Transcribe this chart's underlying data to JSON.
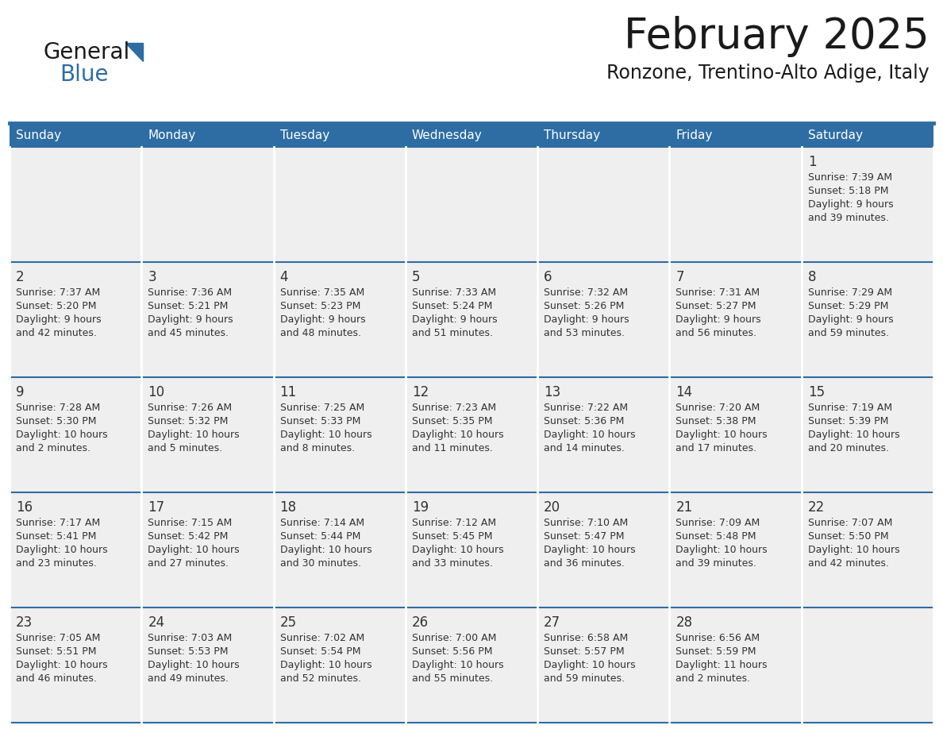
{
  "title": "February 2025",
  "subtitle": "Ronzone, Trentino-Alto Adige, Italy",
  "header_bg": "#2E6DA4",
  "header_text": "#FFFFFF",
  "cell_bg_light": "#EFEFEF",
  "border_color": "#2E6DA4",
  "title_color": "#1a1a1a",
  "subtitle_color": "#1a1a1a",
  "day_number_color": "#333333",
  "cell_text_color": "#333333",
  "day_names": [
    "Sunday",
    "Monday",
    "Tuesday",
    "Wednesday",
    "Thursday",
    "Friday",
    "Saturday"
  ],
  "logo_general_color": "#1a1a1a",
  "logo_blue_color": "#2E6DA4",
  "days": [
    {
      "date": 1,
      "col": 6,
      "row": 0,
      "sunrise": "7:39 AM",
      "sunset": "5:18 PM",
      "daylight": "9 hours and 39 minutes"
    },
    {
      "date": 2,
      "col": 0,
      "row": 1,
      "sunrise": "7:37 AM",
      "sunset": "5:20 PM",
      "daylight": "9 hours and 42 minutes"
    },
    {
      "date": 3,
      "col": 1,
      "row": 1,
      "sunrise": "7:36 AM",
      "sunset": "5:21 PM",
      "daylight": "9 hours and 45 minutes"
    },
    {
      "date": 4,
      "col": 2,
      "row": 1,
      "sunrise": "7:35 AM",
      "sunset": "5:23 PM",
      "daylight": "9 hours and 48 minutes"
    },
    {
      "date": 5,
      "col": 3,
      "row": 1,
      "sunrise": "7:33 AM",
      "sunset": "5:24 PM",
      "daylight": "9 hours and 51 minutes"
    },
    {
      "date": 6,
      "col": 4,
      "row": 1,
      "sunrise": "7:32 AM",
      "sunset": "5:26 PM",
      "daylight": "9 hours and 53 minutes"
    },
    {
      "date": 7,
      "col": 5,
      "row": 1,
      "sunrise": "7:31 AM",
      "sunset": "5:27 PM",
      "daylight": "9 hours and 56 minutes"
    },
    {
      "date": 8,
      "col": 6,
      "row": 1,
      "sunrise": "7:29 AM",
      "sunset": "5:29 PM",
      "daylight": "9 hours and 59 minutes"
    },
    {
      "date": 9,
      "col": 0,
      "row": 2,
      "sunrise": "7:28 AM",
      "sunset": "5:30 PM",
      "daylight": "10 hours and 2 minutes"
    },
    {
      "date": 10,
      "col": 1,
      "row": 2,
      "sunrise": "7:26 AM",
      "sunset": "5:32 PM",
      "daylight": "10 hours and 5 minutes"
    },
    {
      "date": 11,
      "col": 2,
      "row": 2,
      "sunrise": "7:25 AM",
      "sunset": "5:33 PM",
      "daylight": "10 hours and 8 minutes"
    },
    {
      "date": 12,
      "col": 3,
      "row": 2,
      "sunrise": "7:23 AM",
      "sunset": "5:35 PM",
      "daylight": "10 hours and 11 minutes"
    },
    {
      "date": 13,
      "col": 4,
      "row": 2,
      "sunrise": "7:22 AM",
      "sunset": "5:36 PM",
      "daylight": "10 hours and 14 minutes"
    },
    {
      "date": 14,
      "col": 5,
      "row": 2,
      "sunrise": "7:20 AM",
      "sunset": "5:38 PM",
      "daylight": "10 hours and 17 minutes"
    },
    {
      "date": 15,
      "col": 6,
      "row": 2,
      "sunrise": "7:19 AM",
      "sunset": "5:39 PM",
      "daylight": "10 hours and 20 minutes"
    },
    {
      "date": 16,
      "col": 0,
      "row": 3,
      "sunrise": "7:17 AM",
      "sunset": "5:41 PM",
      "daylight": "10 hours and 23 minutes"
    },
    {
      "date": 17,
      "col": 1,
      "row": 3,
      "sunrise": "7:15 AM",
      "sunset": "5:42 PM",
      "daylight": "10 hours and 27 minutes"
    },
    {
      "date": 18,
      "col": 2,
      "row": 3,
      "sunrise": "7:14 AM",
      "sunset": "5:44 PM",
      "daylight": "10 hours and 30 minutes"
    },
    {
      "date": 19,
      "col": 3,
      "row": 3,
      "sunrise": "7:12 AM",
      "sunset": "5:45 PM",
      "daylight": "10 hours and 33 minutes"
    },
    {
      "date": 20,
      "col": 4,
      "row": 3,
      "sunrise": "7:10 AM",
      "sunset": "5:47 PM",
      "daylight": "10 hours and 36 minutes"
    },
    {
      "date": 21,
      "col": 5,
      "row": 3,
      "sunrise": "7:09 AM",
      "sunset": "5:48 PM",
      "daylight": "10 hours and 39 minutes"
    },
    {
      "date": 22,
      "col": 6,
      "row": 3,
      "sunrise": "7:07 AM",
      "sunset": "5:50 PM",
      "daylight": "10 hours and 42 minutes"
    },
    {
      "date": 23,
      "col": 0,
      "row": 4,
      "sunrise": "7:05 AM",
      "sunset": "5:51 PM",
      "daylight": "10 hours and 46 minutes"
    },
    {
      "date": 24,
      "col": 1,
      "row": 4,
      "sunrise": "7:03 AM",
      "sunset": "5:53 PM",
      "daylight": "10 hours and 49 minutes"
    },
    {
      "date": 25,
      "col": 2,
      "row": 4,
      "sunrise": "7:02 AM",
      "sunset": "5:54 PM",
      "daylight": "10 hours and 52 minutes"
    },
    {
      "date": 26,
      "col": 3,
      "row": 4,
      "sunrise": "7:00 AM",
      "sunset": "5:56 PM",
      "daylight": "10 hours and 55 minutes"
    },
    {
      "date": 27,
      "col": 4,
      "row": 4,
      "sunrise": "6:58 AM",
      "sunset": "5:57 PM",
      "daylight": "10 hours and 59 minutes"
    },
    {
      "date": 28,
      "col": 5,
      "row": 4,
      "sunrise": "6:56 AM",
      "sunset": "5:59 PM",
      "daylight": "11 hours and 2 minutes"
    }
  ]
}
